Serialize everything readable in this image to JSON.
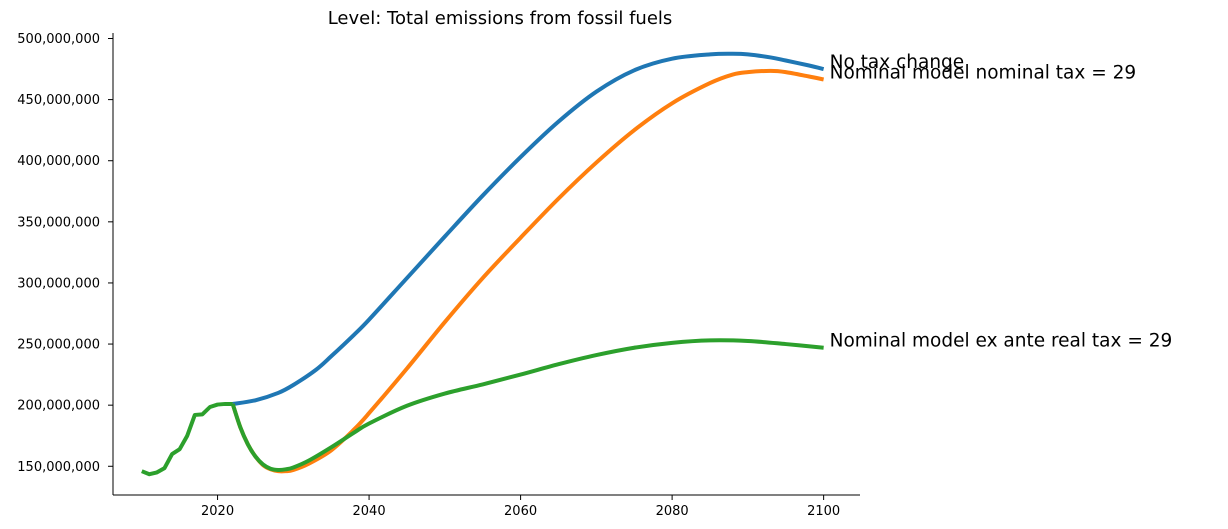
{
  "chart_data": {
    "type": "line",
    "title": "Level: Total emissions from fossil fuels",
    "xlabel": "",
    "ylabel": "",
    "xlim": [
      2006.2,
      2104.8
    ],
    "ylim": [
      126500000,
      504500000
    ],
    "x_ticks": [
      2020,
      2040,
      2060,
      2080,
      2100
    ],
    "x_tick_labels": [
      "2020",
      "2040",
      "2060",
      "2080",
      "2100"
    ],
    "y_ticks": [
      150000000,
      200000000,
      250000000,
      300000000,
      350000000,
      400000000,
      450000000,
      500000000
    ],
    "y_tick_labels": [
      "150,000,000",
      "200,000,000",
      "250,000,000",
      "300,000,000",
      "350,000,000",
      "400,000,000",
      "450,000,000",
      "500,000,000"
    ],
    "grid": false,
    "legend": "none",
    "history": {
      "x": [
        2010,
        2011,
        2012,
        2013,
        2014,
        2015,
        2016,
        2017,
        2018,
        2019,
        2020,
        2021,
        2022
      ],
      "y": [
        146000000,
        143500000,
        145000000,
        148500000,
        160000000,
        164000000,
        175000000,
        192000000,
        192500000,
        198500000,
        200500000,
        201000000,
        201000000
      ]
    },
    "series": [
      {
        "name": "No tax change",
        "color": "#1f77b4",
        "x": [
          2022,
          2025,
          2028,
          2030,
          2033,
          2035,
          2038,
          2040,
          2045,
          2050,
          2055,
          2060,
          2065,
          2070,
          2075,
          2080,
          2085,
          2088,
          2090,
          2093,
          2095,
          2098,
          2100
        ],
        "y": [
          201000000,
          204000000,
          210000000,
          216500000,
          229000000,
          240000000,
          257500000,
          270000000,
          304000000,
          338000000,
          371500000,
          403000000,
          432000000,
          456500000,
          474000000,
          483500000,
          487000000,
          487500000,
          487000000,
          484500000,
          482000000,
          478000000,
          475000000
        ]
      },
      {
        "name": "Nominal model nominal tax = 29",
        "color": "#ff7f0e",
        "x": [
          2022,
          2023,
          2024,
          2025,
          2026,
          2027,
          2028,
          2029,
          2030,
          2032,
          2035,
          2038,
          2040,
          2045,
          2050,
          2055,
          2060,
          2065,
          2070,
          2075,
          2080,
          2085,
          2088,
          2090,
          2093,
          2095,
          2098,
          2100
        ],
        "y": [
          201000000,
          182000000,
          168000000,
          158000000,
          151000000,
          147500000,
          146000000,
          146000000,
          147000000,
          152000000,
          163000000,
          180000000,
          193500000,
          230000000,
          268000000,
          304000000,
          337000000,
          369000000,
          398500000,
          425000000,
          447000000,
          463500000,
          470500000,
          472500000,
          473500000,
          472500000,
          469000000,
          466500000
        ]
      },
      {
        "name": "Nominal model ex ante real tax = 29",
        "color": "#2ca02c",
        "x": [
          2022,
          2023,
          2024,
          2025,
          2026,
          2027,
          2028,
          2029,
          2030,
          2032,
          2035,
          2038,
          2040,
          2045,
          2050,
          2055,
          2060,
          2065,
          2070,
          2075,
          2080,
          2085,
          2090,
          2095,
          2100
        ],
        "y": [
          201000000,
          182000000,
          168000000,
          158000000,
          151500000,
          148000000,
          147000000,
          147500000,
          149000000,
          154500000,
          165500000,
          177500000,
          185000000,
          199500000,
          209500000,
          217000000,
          225000000,
          233500000,
          241000000,
          247000000,
          251000000,
          253000000,
          252500000,
          250000000,
          247000000
        ]
      }
    ]
  }
}
